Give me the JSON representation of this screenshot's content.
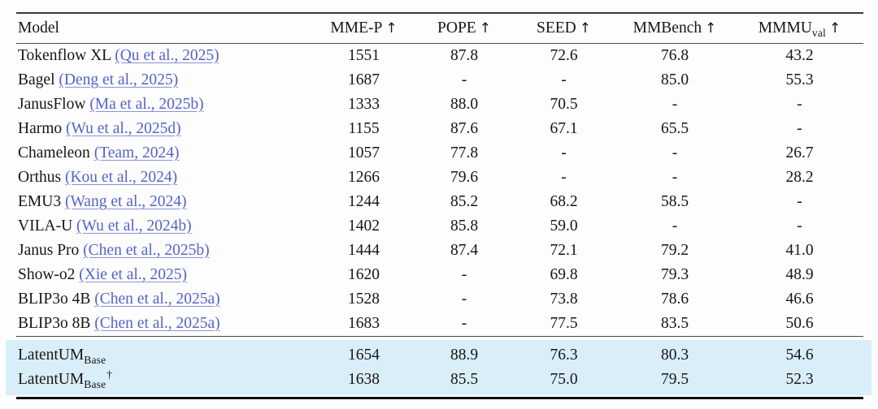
{
  "colors": {
    "link_blue": "#5564c8",
    "link_underline": "#8a93d4",
    "highlight_blue": "#d9eef8",
    "rule_dark": "#101010"
  },
  "table": {
    "headers": [
      {
        "key": "model",
        "label": "Model",
        "sub": "",
        "arrow": ""
      },
      {
        "key": "mme-p",
        "label": "MME-P",
        "sub": "",
        "arrow": "↑"
      },
      {
        "key": "pope",
        "label": "POPE",
        "sub": "",
        "arrow": "↑"
      },
      {
        "key": "seed",
        "label": "SEED",
        "sub": "",
        "arrow": "↑"
      },
      {
        "key": "mmbench",
        "label": "MMBench",
        "sub": "",
        "arrow": "↑"
      },
      {
        "key": "mmmu",
        "label": "MMMU",
        "sub": "val",
        "arrow": "↑"
      }
    ],
    "rows": [
      {
        "name": "Tokenflow XL",
        "citation": "(Qu et al., 2025)",
        "values": [
          "1551",
          "87.8",
          "72.6",
          "76.8",
          "43.2"
        ]
      },
      {
        "name": "Bagel",
        "citation": "(Deng et al., 2025)",
        "values": [
          "1687",
          "-",
          "-",
          "85.0",
          "55.3"
        ]
      },
      {
        "name": "JanusFlow",
        "citation": "(Ma et al., 2025b)",
        "values": [
          "1333",
          "88.0",
          "70.5",
          "-",
          "-"
        ]
      },
      {
        "name": "Harmo",
        "citation": "(Wu et al., 2025d)",
        "values": [
          "1155",
          "87.6",
          "67.1",
          "65.5",
          "-"
        ]
      },
      {
        "name": "Chameleon",
        "citation": "(Team, 2024)",
        "values": [
          "1057",
          "77.8",
          "-",
          "-",
          "26.7"
        ]
      },
      {
        "name": "Orthus",
        "citation": "(Kou et al., 2024)",
        "values": [
          "1266",
          "79.6",
          "-",
          "-",
          "28.2"
        ]
      },
      {
        "name": "EMU3",
        "citation": "(Wang et al., 2024)",
        "values": [
          "1244",
          "85.2",
          "68.2",
          "58.5",
          "-"
        ]
      },
      {
        "name": "VILA-U",
        "citation": "(Wu et al., 2024b)",
        "values": [
          "1402",
          "85.8",
          "59.0",
          "-",
          "-"
        ]
      },
      {
        "name": "Janus Pro",
        "citation": "(Chen et al., 2025b)",
        "values": [
          "1444",
          "87.4",
          "72.1",
          "79.2",
          "41.0"
        ]
      },
      {
        "name": "Show-o2",
        "citation": "(Xie et al., 2025)",
        "values": [
          "1620",
          "-",
          "69.8",
          "79.3",
          "48.9"
        ]
      },
      {
        "name": "BLIP3o 4B",
        "citation": "(Chen et al., 2025a)",
        "values": [
          "1528",
          "-",
          "73.8",
          "78.6",
          "46.6"
        ]
      },
      {
        "name": "BLIP3o 8B",
        "citation": "(Chen et al., 2025a)",
        "values": [
          "1683",
          "-",
          "77.5",
          "83.5",
          "50.6"
        ]
      }
    ],
    "highlight_rows": [
      {
        "name": "LatentUM",
        "sub": "Base",
        "sup": "",
        "citation": "",
        "values": [
          "1654",
          "88.9",
          "76.3",
          "80.3",
          "54.6"
        ]
      },
      {
        "name": "LatentUM",
        "sub": "Base",
        "sup": "†",
        "citation": "",
        "values": [
          "1638",
          "85.5",
          "75.0",
          "79.5",
          "52.3"
        ]
      }
    ]
  }
}
